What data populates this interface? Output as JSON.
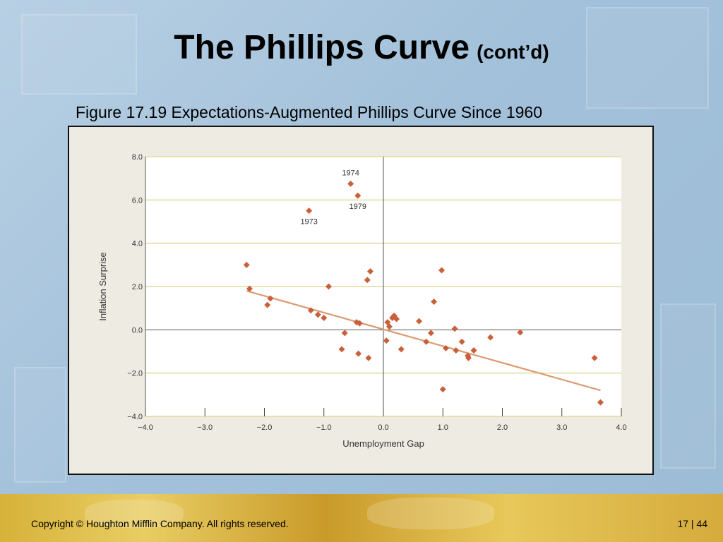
{
  "slide": {
    "title_main": "The Phillips Curve",
    "title_sub": "(cont’d)",
    "caption": "Figure 17.19 Expectations-Augmented Phillips Curve Since 1960",
    "copyright": "Copyright © Houghton Mifflin Company.  All rights reserved.",
    "page": "17 | 44"
  },
  "colors": {
    "point": "#c8613a",
    "trend": "#dd9a72",
    "grid": "#e0dba0"
  },
  "chart_data": {
    "type": "scatter",
    "title": "",
    "xlabel": "Unemployment Gap",
    "ylabel": "Inflation Surprise",
    "xlim": [
      -4.0,
      4.0
    ],
    "ylim": [
      -4.0,
      8.0
    ],
    "x_ticks": [
      "−4.0",
      "−3.0",
      "−2.0",
      "−1.0",
      "0.0",
      "1.0",
      "2.0",
      "3.0",
      "4.0"
    ],
    "y_ticks": [
      "−4.0",
      "−2.0",
      "0.0",
      "2.0",
      "4.0",
      "6.0",
      "8.0"
    ],
    "grid": "horizontal",
    "points": [
      {
        "x": -2.3,
        "y": 3.0
      },
      {
        "x": -2.25,
        "y": 1.9
      },
      {
        "x": -1.95,
        "y": 1.15
      },
      {
        "x": -1.9,
        "y": 1.45
      },
      {
        "x": -1.25,
        "y": 5.5
      },
      {
        "x": -1.22,
        "y": 0.9
      },
      {
        "x": -1.1,
        "y": 0.7
      },
      {
        "x": -1.0,
        "y": 0.55
      },
      {
        "x": -0.92,
        "y": 2.0
      },
      {
        "x": -0.7,
        "y": -0.9
      },
      {
        "x": -0.65,
        "y": -0.15
      },
      {
        "x": -0.55,
        "y": 6.75
      },
      {
        "x": -0.45,
        "y": 0.35
      },
      {
        "x": -0.43,
        "y": 6.2
      },
      {
        "x": -0.42,
        "y": -1.1
      },
      {
        "x": -0.4,
        "y": 0.3
      },
      {
        "x": -0.27,
        "y": 2.3
      },
      {
        "x": -0.25,
        "y": -1.3
      },
      {
        "x": -0.22,
        "y": 2.7
      },
      {
        "x": 0.05,
        "y": -0.5
      },
      {
        "x": 0.07,
        "y": 0.35
      },
      {
        "x": 0.1,
        "y": 0.15
      },
      {
        "x": 0.15,
        "y": 0.55
      },
      {
        "x": 0.18,
        "y": 0.65
      },
      {
        "x": 0.22,
        "y": 0.5
      },
      {
        "x": 0.3,
        "y": -0.9
      },
      {
        "x": 0.6,
        "y": 0.4
      },
      {
        "x": 0.72,
        "y": -0.55
      },
      {
        "x": 0.8,
        "y": -0.15
      },
      {
        "x": 0.85,
        "y": 1.3
      },
      {
        "x": 0.98,
        "y": 2.75
      },
      {
        "x": 1.0,
        "y": -2.75
      },
      {
        "x": 1.05,
        "y": -0.85
      },
      {
        "x": 1.2,
        "y": 0.05
      },
      {
        "x": 1.22,
        "y": -0.95
      },
      {
        "x": 1.32,
        "y": -0.55
      },
      {
        "x": 1.42,
        "y": -1.2
      },
      {
        "x": 1.43,
        "y": -1.3
      },
      {
        "x": 1.52,
        "y": -0.95
      },
      {
        "x": 1.8,
        "y": -0.35
      },
      {
        "x": 2.3,
        "y": -0.12
      },
      {
        "x": 3.55,
        "y": -1.3
      },
      {
        "x": 3.65,
        "y": -3.35
      }
    ],
    "trend_line": {
      "x": [
        -2.3,
        3.65
      ],
      "y": [
        1.8,
        -2.8
      ]
    },
    "annotations": [
      {
        "text": "1974",
        "x": -0.55,
        "y": 6.75
      },
      {
        "text": "1979",
        "x": -0.43,
        "y": 6.2
      },
      {
        "text": "1973",
        "x": -1.25,
        "y": 5.5
      }
    ]
  }
}
